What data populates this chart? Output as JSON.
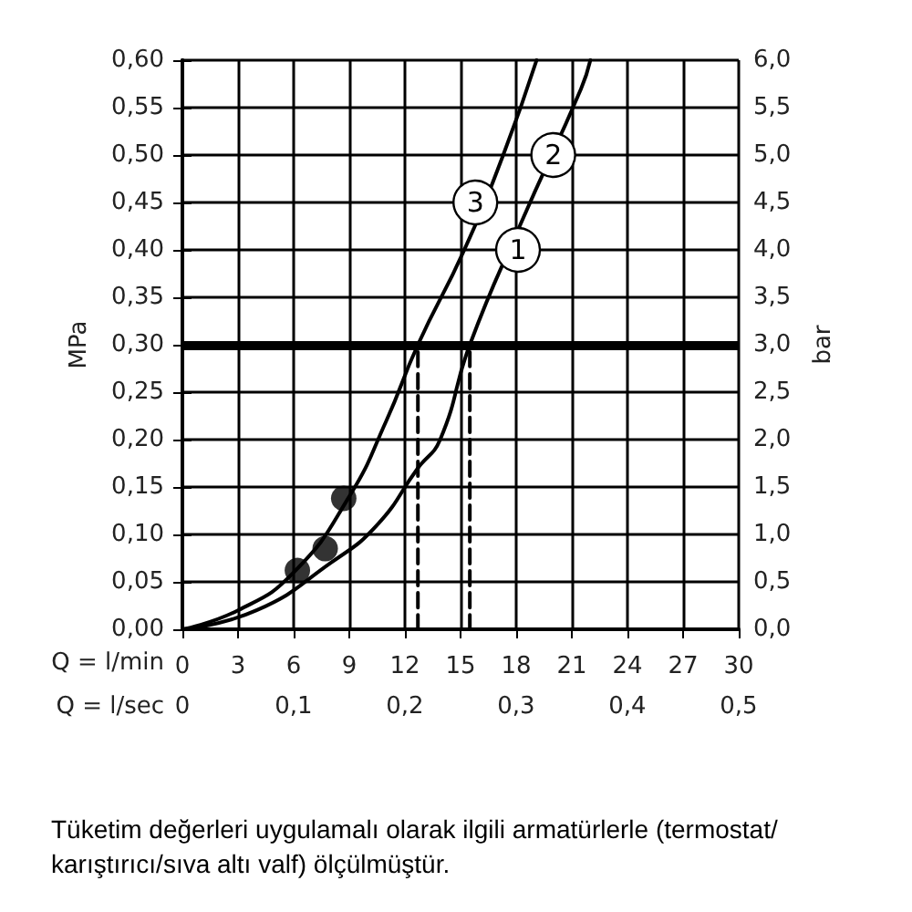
{
  "chart_data": {
    "type": "line",
    "xlabel": "Q = l/min",
    "x2label": "Q = l/sec",
    "ylabel": "MPa",
    "y2label": "bar",
    "xlim": [
      0,
      30
    ],
    "xticks": [
      0,
      3,
      6,
      9,
      12,
      15,
      18,
      21,
      24,
      27,
      30
    ],
    "x2lim": [
      0,
      0.5
    ],
    "x2ticks": [
      0,
      {
        "value": 0.1,
        "label": "0,1"
      },
      {
        "value": 0.2,
        "label": "0,2"
      },
      {
        "value": 0.3,
        "label": "0,3"
      },
      {
        "value": 0.4,
        "label": "0,4"
      },
      {
        "value": 0.5,
        "label": "0,5"
      }
    ],
    "ylim": [
      0,
      0.6
    ],
    "yticks": [
      {
        "value": 0,
        "label": "0,00"
      },
      {
        "value": 0.05,
        "label": "0,05"
      },
      {
        "value": 0.1,
        "label": "0,10"
      },
      {
        "value": 0.15,
        "label": "0,15"
      },
      {
        "value": 0.2,
        "label": "0,20"
      },
      {
        "value": 0.25,
        "label": "0,25"
      },
      {
        "value": 0.3,
        "label": "0,30"
      },
      {
        "value": 0.35,
        "label": "0,35"
      },
      {
        "value": 0.4,
        "label": "0,40"
      },
      {
        "value": 0.45,
        "label": "0,45"
      },
      {
        "value": 0.5,
        "label": "0,50"
      },
      {
        "value": 0.55,
        "label": "0,55"
      },
      {
        "value": 0.6,
        "label": "0,60"
      }
    ],
    "y2lim": [
      0,
      6
    ],
    "y2ticks": [
      {
        "value": 0,
        "label": "0,0"
      },
      {
        "value": 0.5,
        "label": "0,5"
      },
      {
        "value": 1,
        "label": "1,0"
      },
      {
        "value": 1.5,
        "label": "1,5"
      },
      {
        "value": 2,
        "label": "2,0"
      },
      {
        "value": 2.5,
        "label": "2,5"
      },
      {
        "value": 3,
        "label": "3,0"
      },
      {
        "value": 3.5,
        "label": "3,5"
      },
      {
        "value": 4,
        "label": "4,0"
      },
      {
        "value": 4.5,
        "label": "4,5"
      },
      {
        "value": 5,
        "label": "5,0"
      },
      {
        "value": 5.5,
        "label": "5,5"
      },
      {
        "value": 6,
        "label": "6,0"
      }
    ],
    "grid": true,
    "marker": "none",
    "line_style": "solid",
    "series": [
      {
        "color": "#000000",
        "x": [
          0,
          3,
          6,
          9,
          11,
          12.7,
          15.2,
          17.3,
          19.1
        ],
        "values": [
          0,
          0.02,
          0.06,
          0.14,
          0.22,
          0.3,
          0.4,
          0.5,
          0.6
        ]
      },
      {
        "color": "#000000",
        "x": [
          0,
          4,
          8,
          10.5,
          12.7,
          13.9,
          15.5,
          18.3,
          21.5,
          22
        ],
        "values": [
          0,
          0.02,
          0.07,
          0.11,
          0.17,
          0.2,
          0.3,
          0.43,
          0.57,
          0.6
        ]
      },
      {
        "type": "scatter",
        "marker": "circle",
        "color": "#000000",
        "x": [
          6.2,
          7.7,
          8.7
        ],
        "values": [
          0.062,
          0.085,
          0.138
        ]
      },
      {
        "color": "#000000",
        "line_style": "dashed",
        "x": [
          12.7,
          12.7
        ],
        "values": [
          0,
          0.3
        ]
      },
      {
        "color": "#000000",
        "line_style": "dashed",
        "x": [
          15.5,
          15.5
        ],
        "values": [
          0,
          0.3
        ]
      }
    ],
    "ref_lines": [
      {
        "axis": "y",
        "value": 0.3,
        "color": "#000000"
      }
    ],
    "annotations": [
      {
        "text": "3",
        "x": 15.8,
        "y": 0.45
      },
      {
        "text": "1",
        "x": 18.1,
        "y": 0.4
      },
      {
        "text": "2",
        "x": 20,
        "y": 0.5
      },
      "Tüketim değerleri uygulamalı olarak ilgili armatürlerle (termostat/karıştırıcı/sıva altı valf) ölçülmüştür."
    ]
  }
}
